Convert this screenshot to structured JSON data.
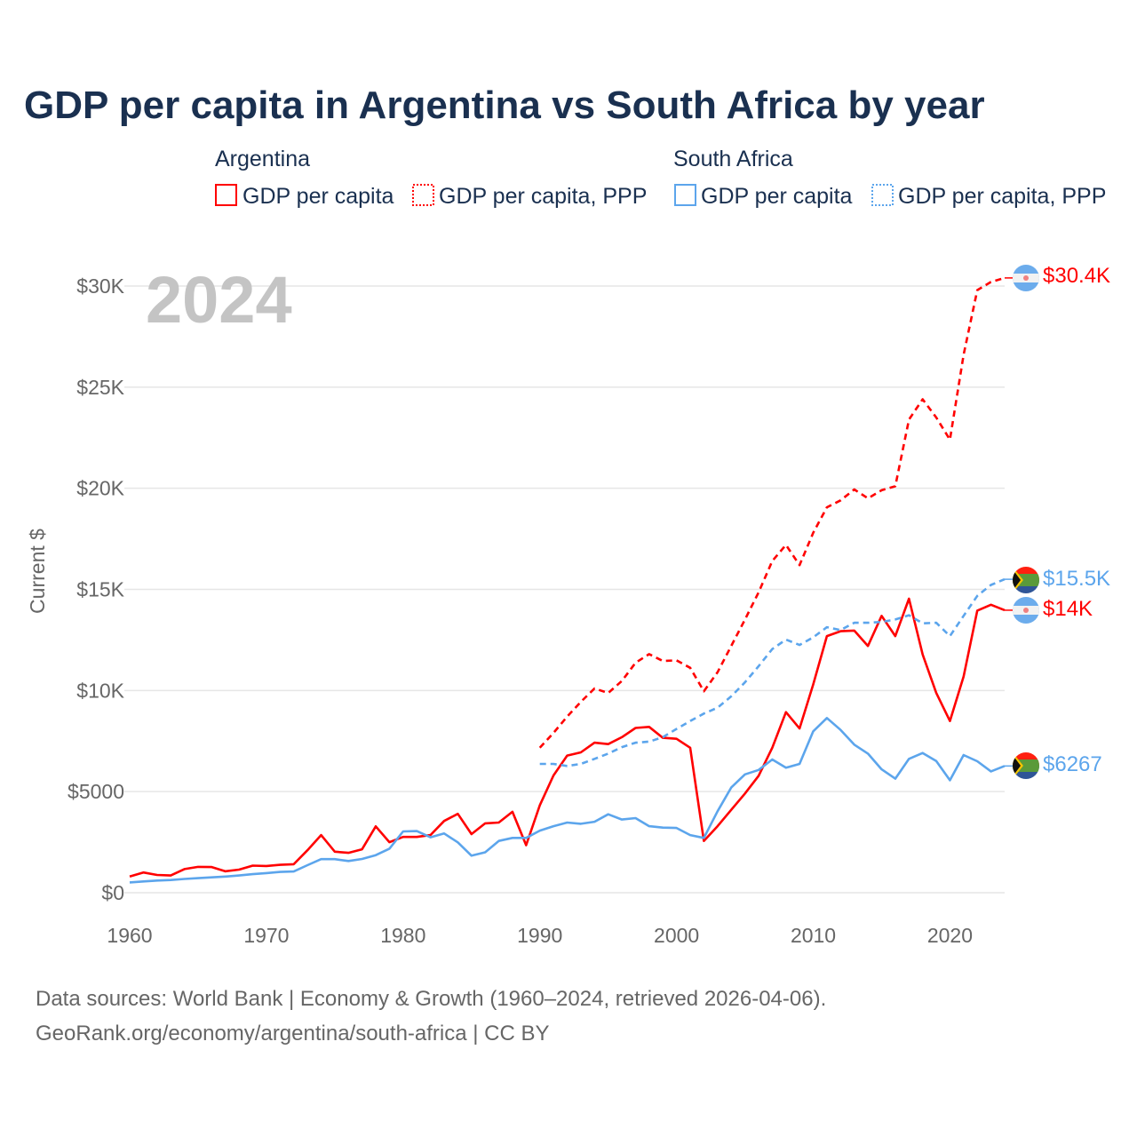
{
  "title": "GDP per capita in Argentina vs South Africa by year",
  "year_watermark": "2024",
  "colors": {
    "argentina": "#ff0000",
    "south_africa": "#5ca5ec",
    "title": "#1a3050",
    "grid": "#e6e6e6",
    "axis_text": "#666666"
  },
  "legend": {
    "groups": [
      {
        "country": "Argentina",
        "items": [
          "GDP per capita",
          "GDP per capita, PPP"
        ]
      },
      {
        "country": "South Africa",
        "items": [
          "GDP per capita",
          "GDP per capita, PPP"
        ]
      }
    ]
  },
  "end_labels": {
    "arg_ppp": "$30.4K",
    "sa_ppp": "$15.5K",
    "arg_gdp": "$14K",
    "sa_gdp": "$6267"
  },
  "flags": {
    "argentina": "argentina-flag-icon",
    "south_africa": "south-africa-flag-icon"
  },
  "sources": {
    "line1": "Data sources: World Bank | Economy & Growth (1960–2024, retrieved 2026-04-06).",
    "line2": "GeoRank.org/economy/argentina/south-africa | CC BY"
  },
  "chart_data": {
    "type": "line",
    "title": "GDP per capita in Argentina vs South Africa by year",
    "xlabel": "",
    "ylabel": "Current $",
    "xlim": [
      1960,
      2024
    ],
    "ylim": [
      0,
      30000
    ],
    "x_ticks": [
      1960,
      1970,
      1980,
      1990,
      2000,
      2010,
      2020
    ],
    "x_tick_labels": [
      "1960",
      "1970",
      "1980",
      "1990",
      "2000",
      "2010",
      "2020"
    ],
    "y_ticks": [
      0,
      5000,
      10000,
      15000,
      20000,
      25000,
      30000
    ],
    "y_tick_labels": [
      "$0",
      "$5000",
      "$10K",
      "$15K",
      "$20K",
      "$25K",
      "$30K"
    ],
    "grid": true,
    "legend_position": "top",
    "series": [
      {
        "key": "arg_gdp",
        "name": "Argentina — GDP per capita",
        "color": "#ff0000",
        "dash": false,
        "start_year": 1960,
        "values": [
          800,
          1000,
          880,
          850,
          1170,
          1280,
          1270,
          1060,
          1140,
          1340,
          1320,
          1380,
          1410,
          2100,
          2850,
          2030,
          1970,
          2150,
          3280,
          2500,
          2760,
          2760,
          2850,
          3550,
          3900,
          2900,
          3430,
          3470,
          4000,
          2350,
          4320,
          5800,
          6780,
          6940,
          7420,
          7350,
          7690,
          8150,
          8200,
          7660,
          7610,
          7170,
          2560,
          3290,
          4100,
          4900,
          5780,
          7170,
          8930,
          8120,
          10300,
          12690,
          12930,
          12960,
          12200,
          13690,
          12690,
          14540,
          11780,
          9880,
          8490,
          10690,
          13950,
          14240,
          13970
        ]
      },
      {
        "key": "arg_ppp",
        "name": "Argentina — GDP per capita, PPP",
        "color": "#ff0000",
        "dash": true,
        "start_year": 1990,
        "values": [
          7170,
          7900,
          8710,
          9440,
          10100,
          9880,
          10470,
          11370,
          11800,
          11460,
          11490,
          11120,
          9960,
          10900,
          12200,
          13500,
          14850,
          16400,
          17200,
          16200,
          17800,
          19060,
          19400,
          19940,
          19500,
          19900,
          20100,
          23400,
          24400,
          23500,
          22400,
          26600,
          29800,
          30200,
          30400
        ]
      },
      {
        "key": "sa_gdp",
        "name": "South Africa — GDP per capita",
        "color": "#5ca5ec",
        "dash": false,
        "start_year": 1960,
        "values": [
          510,
          560,
          600,
          630,
          680,
          720,
          760,
          800,
          850,
          920,
          970,
          1030,
          1050,
          1360,
          1660,
          1660,
          1570,
          1670,
          1860,
          2180,
          3030,
          3050,
          2740,
          2930,
          2490,
          1830,
          2000,
          2560,
          2710,
          2710,
          3070,
          3290,
          3470,
          3410,
          3510,
          3880,
          3620,
          3690,
          3290,
          3220,
          3200,
          2850,
          2710,
          4030,
          5200,
          5850,
          6070,
          6590,
          6180,
          6370,
          7980,
          8640,
          8050,
          7320,
          6880,
          6100,
          5640,
          6620,
          6910,
          6510,
          5560,
          6810,
          6500,
          6000,
          6267
        ]
      },
      {
        "key": "sa_ppp",
        "name": "South Africa — GDP per capita, PPP",
        "color": "#5ca5ec",
        "dash": true,
        "start_year": 1990,
        "values": [
          6370,
          6370,
          6270,
          6370,
          6620,
          6880,
          7200,
          7420,
          7470,
          7690,
          8100,
          8490,
          8860,
          9150,
          9710,
          10400,
          11200,
          12050,
          12520,
          12250,
          12630,
          13130,
          12990,
          13350,
          13350,
          13390,
          13510,
          13720,
          13320,
          13350,
          12690,
          13690,
          14680,
          15220,
          15500
        ]
      }
    ]
  }
}
